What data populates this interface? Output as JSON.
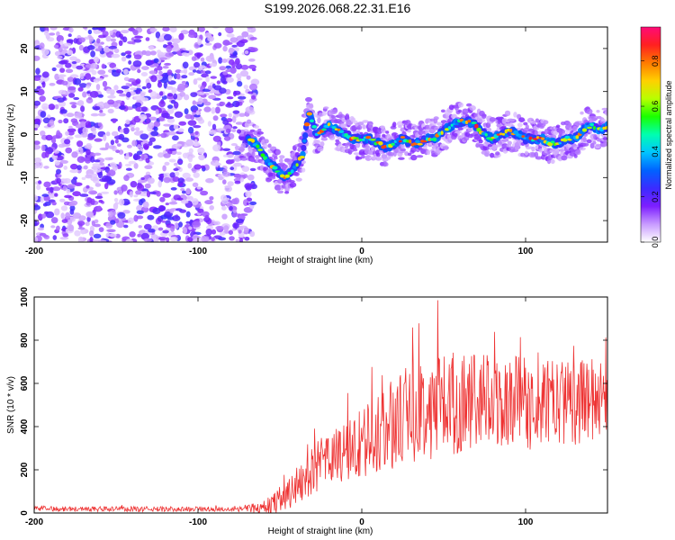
{
  "title": "S199.2026.068.22.31.E16",
  "chart_data": [
    {
      "type": "heatmap",
      "title": "S199.2026.068.22.31.E16",
      "xlabel": "Height of straight line (km)",
      "ylabel": "Frequency (Hz)",
      "xlim": [
        -200,
        150
      ],
      "ylim": [
        -25,
        25
      ],
      "xticks": [
        -200,
        -100,
        0,
        100
      ],
      "yticks": [
        -20,
        -10,
        0,
        10,
        20
      ],
      "colorbar": {
        "label": "Normalized spectral amplitude",
        "range": [
          0,
          0.95
        ],
        "ticks": [
          0.0,
          0.2,
          0.4,
          0.6,
          0.8
        ],
        "colors": [
          "#ffffff",
          "#c89bff",
          "#7d1fff",
          "#3b2bff",
          "#0062ff",
          "#00c4ff",
          "#00ffb0",
          "#1aff00",
          "#b8ff00",
          "#ffd000",
          "#ff7a00",
          "#ff2020",
          "#ff0a78"
        ]
      },
      "noise_region_x": [
        -200,
        -65
      ],
      "ridge_x": [
        -70,
        -65,
        -60,
        -55,
        -50,
        -47,
        -44,
        -40,
        -36,
        -34,
        -32,
        -30,
        -28,
        -25,
        -20,
        -15,
        -10,
        -5,
        0,
        5,
        10,
        15,
        20,
        25,
        30,
        35,
        40,
        45,
        50,
        55,
        60,
        65,
        70,
        75,
        80,
        85,
        90,
        95,
        100,
        105,
        110,
        115,
        120,
        125,
        130,
        135,
        140,
        145,
        150
      ],
      "ridge_freq": [
        -1,
        -2,
        -5,
        -7,
        -9,
        -10,
        -9,
        -7,
        -5,
        2,
        5,
        3,
        0,
        1,
        2,
        1,
        0,
        -1,
        -1,
        -1,
        -2,
        -3,
        -2,
        -1,
        -2,
        -2,
        -1,
        -1,
        1,
        2,
        3,
        3,
        2,
        0,
        -1,
        0,
        1,
        0,
        -1,
        -1,
        -1,
        -2,
        -2,
        -1,
        -1,
        1,
        2,
        1,
        2
      ]
    },
    {
      "type": "line",
      "xlabel": "Height of straight line (km)",
      "ylabel": "SNR (10 * v/v)",
      "xlim": [
        -200,
        150
      ],
      "ylim": [
        0,
        1000
      ],
      "xticks": [
        -200,
        -100,
        0,
        100
      ],
      "yticks": [
        0,
        200,
        400,
        600,
        800,
        1000
      ],
      "color": "#ee3333",
      "envelope_x": [
        -200,
        -150,
        -100,
        -80,
        -60,
        -50,
        -40,
        -30,
        -20,
        -10,
        0,
        10,
        20,
        30,
        40,
        50,
        60,
        70,
        80,
        90,
        100,
        110,
        120,
        130,
        140,
        150
      ],
      "envelope_mean": [
        20,
        18,
        18,
        18,
        25,
        60,
        120,
        200,
        250,
        280,
        320,
        360,
        420,
        460,
        490,
        500,
        520,
        510,
        500,
        520,
        510,
        500,
        520,
        510,
        530,
        530
      ],
      "envelope_spread": [
        12,
        12,
        12,
        10,
        30,
        60,
        90,
        110,
        130,
        150,
        170,
        190,
        210,
        230,
        240,
        260,
        240,
        240,
        230,
        220,
        220,
        200,
        200,
        200,
        190,
        190
      ]
    }
  ]
}
